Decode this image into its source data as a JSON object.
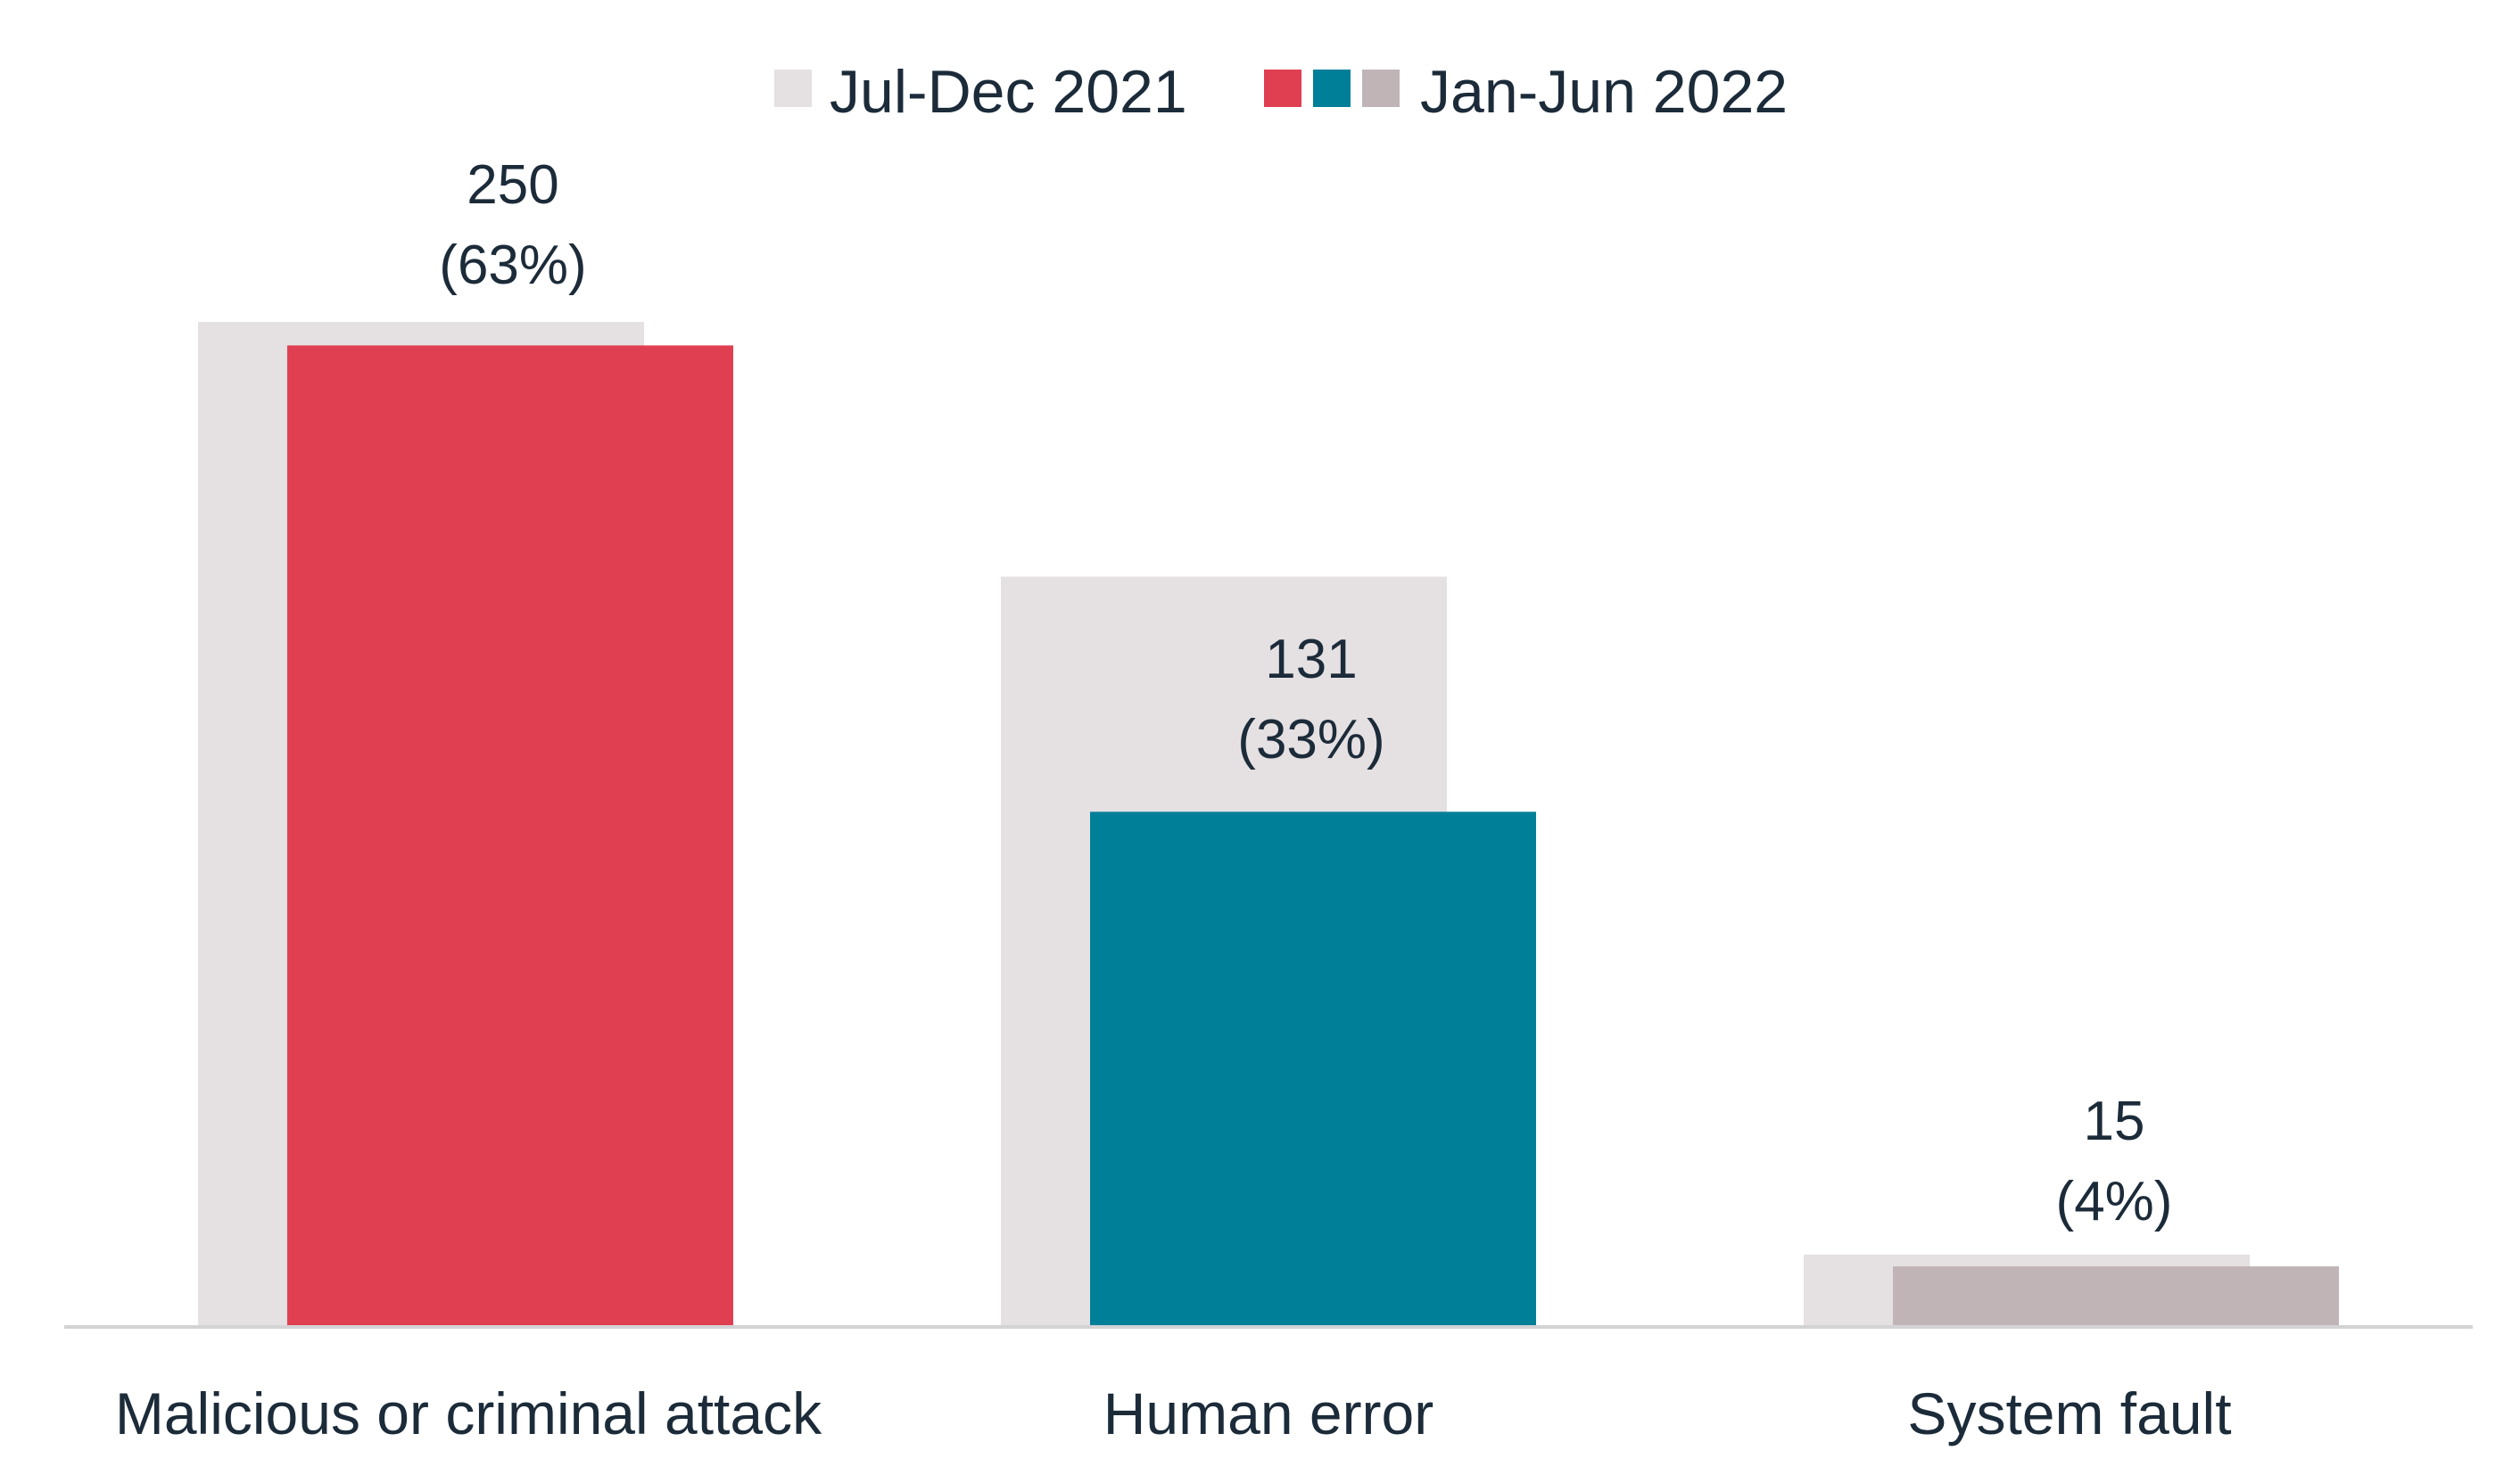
{
  "legend": {
    "previous_label": "Jul-Dec 2021",
    "current_label": "Jan-Jun 2022"
  },
  "colors": {
    "previous": "#e5e0e2",
    "malicious": "#e03f52",
    "human": "#007f99",
    "system": "#c1b4b7",
    "axis": "#d3d3d6",
    "text": "#1c2b39"
  },
  "chart_data": {
    "type": "bar",
    "categories": [
      "Malicious or criminal attack",
      "Human error",
      "System fault"
    ],
    "series": [
      {
        "name": "Jul-Dec 2021",
        "values": [
          256,
          191,
          18
        ]
      },
      {
        "name": "Jan-Jun 2022",
        "values": [
          250,
          131,
          15
        ],
        "labels": [
          "(63%)",
          "(33%)",
          "(4%)"
        ]
      }
    ],
    "ylim": [
      0,
      280
    ],
    "grid": false,
    "legend_position": "top-center"
  }
}
